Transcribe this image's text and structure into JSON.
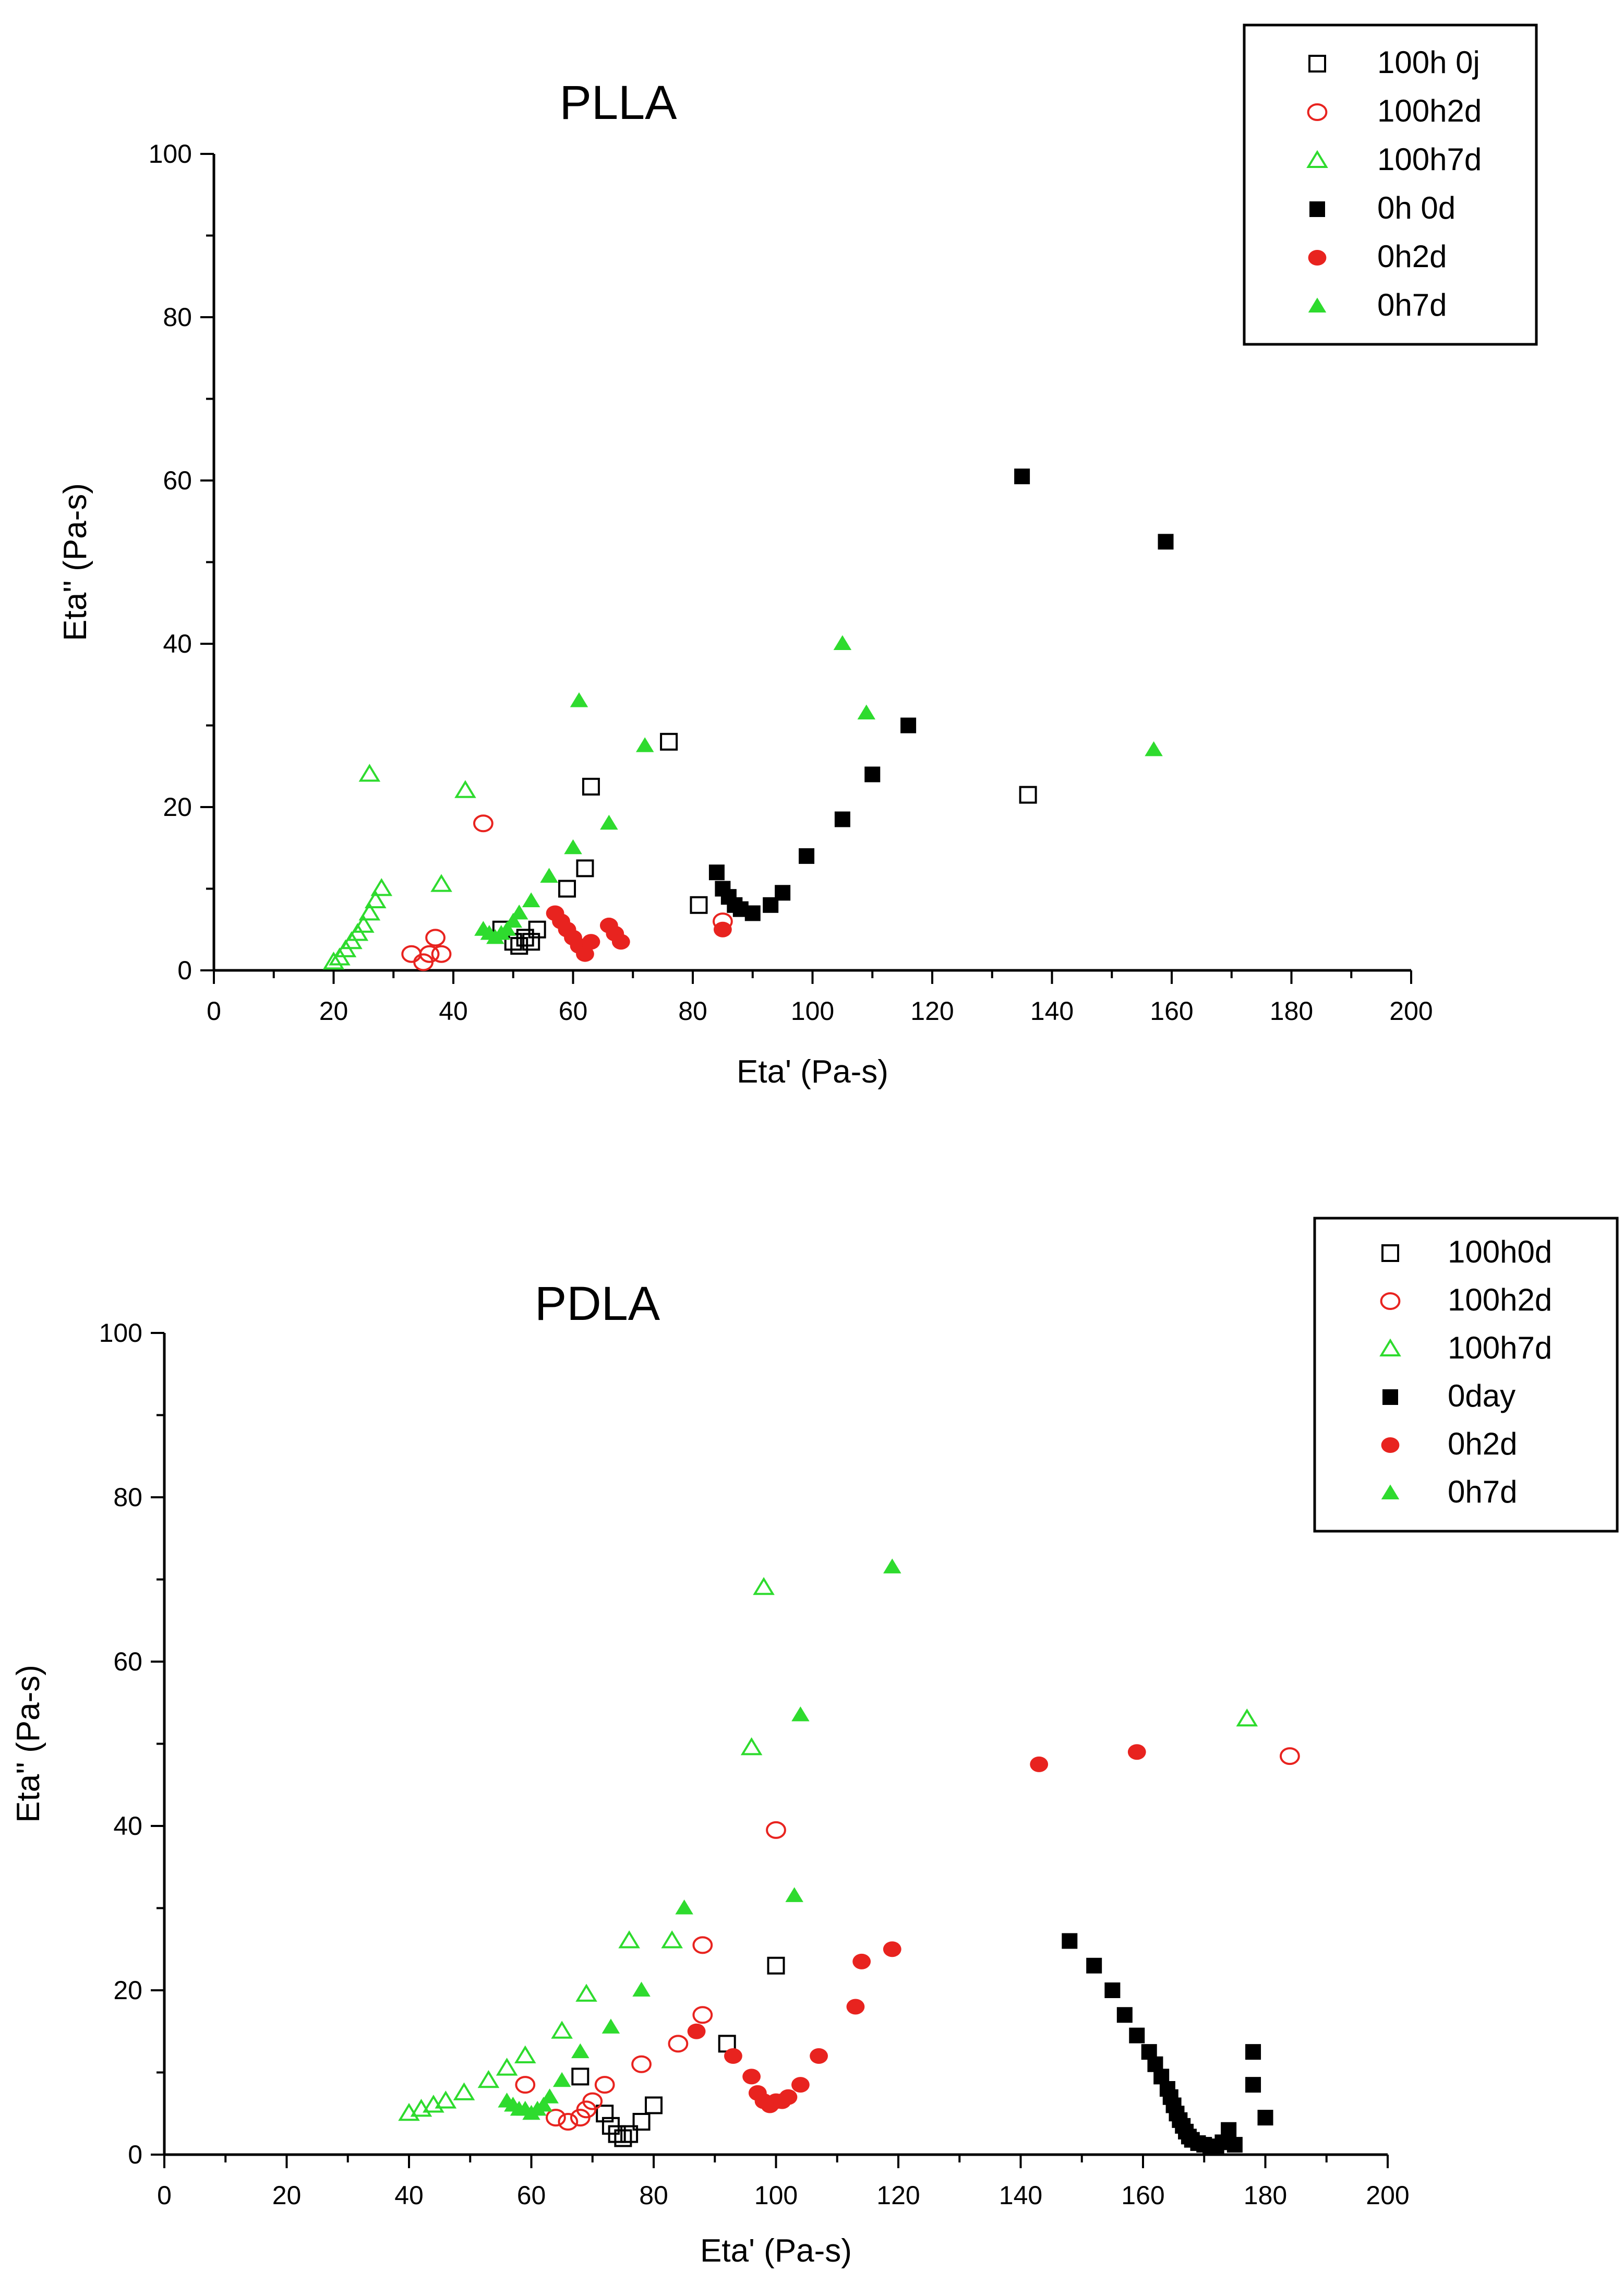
{
  "charts": [
    {
      "type": "scatter",
      "title": "PLLA",
      "xlabel": "Eta' (Pa-s)",
      "ylabel": "Eta'' (Pa-s)",
      "xlim": [
        0,
        200
      ],
      "ylim": [
        0,
        100
      ],
      "x_ticks": [
        0,
        20,
        40,
        60,
        80,
        100,
        120,
        140,
        160,
        180,
        200
      ],
      "y_ticks": [
        0,
        20,
        40,
        60,
        80,
        100
      ],
      "legend_position": "top-right",
      "series": [
        {
          "name": "100h 0j",
          "marker": "square",
          "filled": false,
          "color": "#000000",
          "points": [
            [
              48,
              5
            ],
            [
              50,
              3.5
            ],
            [
              51,
              3
            ],
            [
              52,
              4
            ],
            [
              53,
              3.5
            ],
            [
              54,
              5
            ],
            [
              59,
              10
            ],
            [
              62,
              12.5
            ],
            [
              63,
              22.5
            ],
            [
              76,
              28
            ],
            [
              81,
              8
            ],
            [
              136,
              21.5
            ]
          ]
        },
        {
          "name": "100h2d",
          "marker": "circle",
          "filled": false,
          "color": "#e8231f",
          "points": [
            [
              33,
              2
            ],
            [
              35,
              1
            ],
            [
              36,
              2
            ],
            [
              37,
              4
            ],
            [
              38,
              2
            ],
            [
              45,
              18
            ],
            [
              85,
              6
            ]
          ]
        },
        {
          "name": "100h7d",
          "marker": "triangle",
          "filled": false,
          "color": "#2edb2e",
          "points": [
            [
              20,
              1
            ],
            [
              21,
              1.5
            ],
            [
              22,
              2.5
            ],
            [
              23,
              3.5
            ],
            [
              24,
              4.5
            ],
            [
              25,
              5.5
            ],
            [
              26,
              7
            ],
            [
              27,
              8.5
            ],
            [
              28,
              10
            ],
            [
              26,
              24
            ],
            [
              38,
              10.5
            ],
            [
              42,
              22
            ]
          ]
        },
        {
          "name": "0h 0d",
          "marker": "square",
          "filled": true,
          "color": "#000000",
          "points": [
            [
              84,
              12
            ],
            [
              85,
              10
            ],
            [
              86,
              9
            ],
            [
              87,
              8
            ],
            [
              88,
              7.5
            ],
            [
              90,
              7
            ],
            [
              93,
              8
            ],
            [
              95,
              9.5
            ],
            [
              99,
              14
            ],
            [
              105,
              18.5
            ],
            [
              110,
              24
            ],
            [
              116,
              30
            ],
            [
              135,
              60.5
            ],
            [
              159,
              52.5
            ]
          ]
        },
        {
          "name": "0h2d",
          "marker": "circle",
          "filled": true,
          "color": "#e8231f",
          "points": [
            [
              57,
              7
            ],
            [
              58,
              6
            ],
            [
              59,
              5
            ],
            [
              60,
              4
            ],
            [
              61,
              3
            ],
            [
              62,
              2
            ],
            [
              63,
              3.5
            ],
            [
              66,
              5.5
            ],
            [
              67,
              4.5
            ],
            [
              68,
              3.5
            ],
            [
              85,
              5
            ]
          ]
        },
        {
          "name": "0h7d",
          "marker": "triangle",
          "filled": true,
          "color": "#2edb2e",
          "points": [
            [
              45,
              5
            ],
            [
              46,
              4.5
            ],
            [
              47,
              4
            ],
            [
              48,
              4.5
            ],
            [
              49,
              5
            ],
            [
              50,
              6
            ],
            [
              51,
              7
            ],
            [
              53,
              8.5
            ],
            [
              56,
              11.5
            ],
            [
              60,
              15
            ],
            [
              61,
              33
            ],
            [
              66,
              18
            ],
            [
              72,
              27.5
            ],
            [
              105,
              40
            ],
            [
              109,
              31.5
            ],
            [
              157,
              27
            ]
          ]
        }
      ]
    },
    {
      "type": "scatter",
      "title": "PDLA",
      "xlabel": "Eta' (Pa-s)",
      "ylabel": "Eta'' (Pa-s)",
      "xlim": [
        0,
        200
      ],
      "ylim": [
        0,
        100
      ],
      "x_ticks": [
        0,
        20,
        40,
        60,
        80,
        100,
        120,
        140,
        160,
        180,
        200
      ],
      "y_ticks": [
        0,
        20,
        40,
        60,
        80,
        100
      ],
      "legend_position": "top-right",
      "series": [
        {
          "name": "100h0d",
          "marker": "square",
          "filled": false,
          "color": "#000000",
          "points": [
            [
              68,
              9.5
            ],
            [
              72,
              5
            ],
            [
              73,
              3.5
            ],
            [
              74,
              2.5
            ],
            [
              75,
              2
            ],
            [
              76,
              2.5
            ],
            [
              78,
              4
            ],
            [
              80,
              6
            ],
            [
              92,
              13.5
            ],
            [
              100,
              23
            ]
          ]
        },
        {
          "name": "100h2d",
          "marker": "circle",
          "filled": false,
          "color": "#e8231f",
          "points": [
            [
              59,
              8.5
            ],
            [
              64,
              4.5
            ],
            [
              66,
              4
            ],
            [
              68,
              4.5
            ],
            [
              69,
              5.5
            ],
            [
              70,
              6.5
            ],
            [
              72,
              8.5
            ],
            [
              78,
              11
            ],
            [
              84,
              13.5
            ],
            [
              88,
              17
            ],
            [
              88,
              25.5
            ],
            [
              100,
              39.5
            ],
            [
              184,
              48.5
            ]
          ]
        },
        {
          "name": "100h7d",
          "marker": "triangle",
          "filled": false,
          "color": "#2edb2e",
          "points": [
            [
              40,
              5
            ],
            [
              42,
              5.5
            ],
            [
              44,
              6
            ],
            [
              46,
              6.5
            ],
            [
              49,
              7.5
            ],
            [
              53,
              9
            ],
            [
              56,
              10.5
            ],
            [
              59,
              12
            ],
            [
              65,
              15
            ],
            [
              69,
              19.5
            ],
            [
              76,
              26
            ],
            [
              83,
              26
            ],
            [
              96,
              49.5
            ],
            [
              98,
              69
            ],
            [
              177,
              53
            ]
          ]
        },
        {
          "name": "0day",
          "marker": "square",
          "filled": true,
          "color": "#000000",
          "points": [
            [
              148,
              26
            ],
            [
              152,
              23
            ],
            [
              155,
              20
            ],
            [
              157,
              17
            ],
            [
              159,
              14.5
            ],
            [
              161,
              12.5
            ],
            [
              162,
              11
            ],
            [
              163,
              9.5
            ],
            [
              164,
              8
            ],
            [
              164.5,
              7
            ],
            [
              165,
              6
            ],
            [
              165.5,
              5
            ],
            [
              166,
              4.2
            ],
            [
              166.5,
              3.5
            ],
            [
              167,
              2.8
            ],
            [
              167.5,
              2.2
            ],
            [
              168,
              1.8
            ],
            [
              169,
              1.4
            ],
            [
              170,
              1.2
            ],
            [
              171,
              1
            ],
            [
              172,
              1
            ],
            [
              173,
              1.5
            ],
            [
              174,
              3
            ],
            [
              175,
              1.2
            ],
            [
              178,
              12.5
            ],
            [
              178,
              8.5
            ],
            [
              180,
              4.5
            ]
          ]
        },
        {
          "name": "0h2d",
          "marker": "circle",
          "filled": true,
          "color": "#e8231f",
          "points": [
            [
              87,
              15
            ],
            [
              93,
              12
            ],
            [
              96,
              9.5
            ],
            [
              97,
              7.5
            ],
            [
              98,
              6.5
            ],
            [
              99,
              6
            ],
            [
              100,
              6.5
            ],
            [
              101,
              6.5
            ],
            [
              102,
              7
            ],
            [
              104,
              8.5
            ],
            [
              107,
              12
            ],
            [
              113,
              18
            ],
            [
              114,
              23.5
            ],
            [
              119,
              25
            ],
            [
              143,
              47.5
            ],
            [
              159,
              49
            ]
          ]
        },
        {
          "name": "0h7d",
          "marker": "triangle",
          "filled": true,
          "color": "#2edb2e",
          "points": [
            [
              56,
              6.5
            ],
            [
              57,
              6
            ],
            [
              58,
              5.5
            ],
            [
              59,
              5.5
            ],
            [
              60,
              5
            ],
            [
              61,
              5.5
            ],
            [
              62,
              6
            ],
            [
              63,
              7
            ],
            [
              65,
              9
            ],
            [
              68,
              12.5
            ],
            [
              73,
              15.5
            ],
            [
              78,
              20
            ],
            [
              85,
              30
            ],
            [
              103,
              31.5
            ],
            [
              104,
              53.5
            ],
            [
              119,
              71.5
            ]
          ]
        }
      ]
    }
  ]
}
